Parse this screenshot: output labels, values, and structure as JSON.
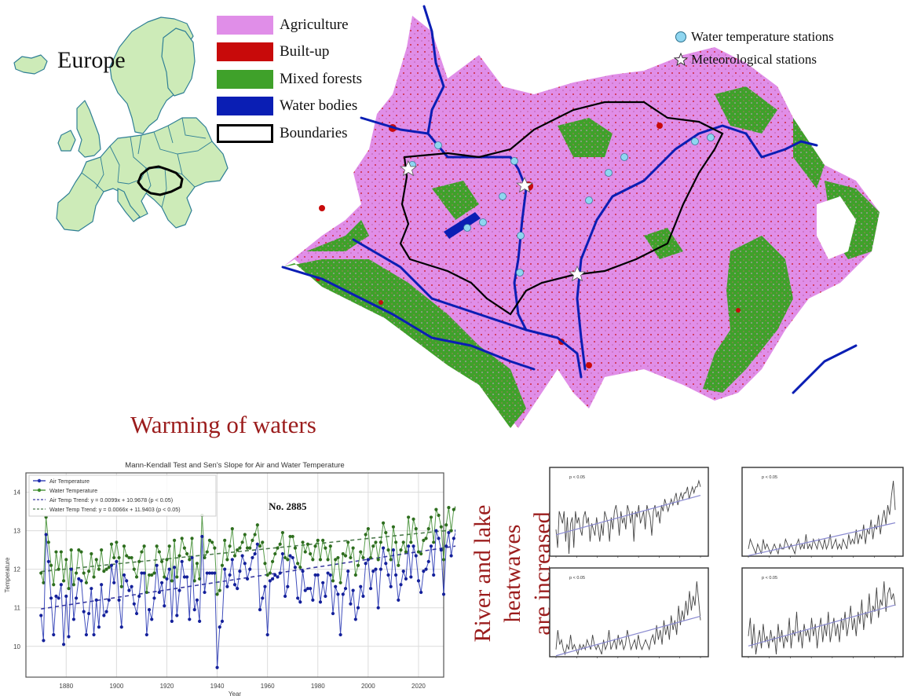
{
  "europe_inset": {
    "title": "Europe",
    "land_color": "#cdebb8",
    "border_color": "#2f7f95",
    "highlight_outline_color": "#000000"
  },
  "landcover_legend": {
    "items": [
      {
        "label": "Agriculture",
        "color": "#e08ee8",
        "kind": "fill"
      },
      {
        "label": "Built-up",
        "color": "#c80a0a",
        "kind": "fill"
      },
      {
        "label": "Mixed forests",
        "color": "#3fa12a",
        "kind": "fill"
      },
      {
        "label": "Water bodies",
        "color": "#0a1eb4",
        "kind": "fill"
      },
      {
        "label": "Boundaries",
        "color": "#000000",
        "kind": "outline"
      }
    ]
  },
  "station_legend": {
    "items": [
      {
        "label": "Water temperature stations",
        "symbol": "circle-icon",
        "color": "#8fd6f0"
      },
      {
        "label": "Meteorological stations",
        "symbol": "star-icon",
        "color": "#ffffff"
      }
    ]
  },
  "section_titles": {
    "warming": "Warming of waters",
    "heatwaves_line1": "River and lake heatwaves",
    "heatwaves_line2": "are increased"
  },
  "chart_data": [
    {
      "type": "line",
      "title": "Mann-Kendall Test and Sen's Slope for Air and Water Temperature",
      "xlabel": "Year",
      "ylabel": "Temperature",
      "annotation": "No. 2885",
      "xlim": [
        1864,
        2030
      ],
      "ylim": [
        9.2,
        14.5
      ],
      "xticks": [
        1880,
        1900,
        1920,
        1940,
        1960,
        1980,
        2000,
        2020
      ],
      "yticks": [
        10,
        11,
        12,
        13,
        14
      ],
      "grid": true,
      "legend_position": "upper left",
      "legend": [
        "Air Temperature",
        "Water Temperature",
        "Air Temp Trend: y = 0.0099x + 10.9678 (p < 0.05)",
        "Water Temp Trend: y = 0.0066x + 11.9403 (p < 0.05)"
      ],
      "x_start": 1870,
      "series": [
        {
          "name": "Air Temperature",
          "color": "#1f2fb0",
          "values": [
            10.8,
            10.15,
            12.9,
            12.2,
            11.25,
            10.3,
            11.3,
            11.25,
            11.6,
            10.05,
            11.3,
            10.25,
            12.0,
            10.7,
            11.25,
            11.75,
            11.7,
            10.9,
            10.3,
            10.85,
            11.5,
            10.3,
            11.2,
            10.5,
            11.6,
            10.8,
            10.9,
            11.2,
            12.1,
            11.65,
            12.2,
            11.2,
            10.5,
            11.85,
            11.7,
            11.45,
            11.55,
            11.1,
            10.85,
            11.3,
            11.9,
            11.9,
            10.3,
            10.95,
            10.7,
            11.25,
            12.1,
            11.4,
            11.65,
            11.05,
            11.75,
            12.0,
            10.65,
            12.05,
            10.8,
            11.45,
            12.2,
            11.8,
            11.8,
            10.7,
            12.3,
            10.95,
            11.2,
            10.65,
            12.85,
            11.4,
            11.9,
            11.9,
            11.9,
            11.9,
            9.45,
            10.5,
            10.65,
            12.0,
            11.55,
            11.85,
            12.25,
            11.6,
            11.5,
            11.95,
            12.35,
            12.15,
            11.75,
            12.0,
            12.3,
            12.4,
            12.65,
            10.95,
            11.25,
            11.55,
            10.3,
            11.7,
            11.75,
            11.85,
            11.8,
            11.9,
            12.4,
            11.3,
            11.55,
            12.35,
            12.3,
            12.05,
            11.25,
            11.15,
            11.95,
            11.45,
            11.5,
            11.5,
            11.2,
            11.85,
            11.85,
            11.15,
            11.65,
            11.3,
            11.9,
            11.85,
            10.85,
            11.55,
            11.35,
            10.3,
            11.35,
            11.5,
            11.95,
            11.1,
            11.45,
            10.7,
            11.0,
            11.55,
            11.3,
            12.15,
            12.25,
            11.5,
            11.95,
            12.0,
            11.0,
            12.0,
            12.55,
            12.15,
            11.85,
            11.55,
            12.5,
            11.85,
            11.2,
            11.6,
            11.95,
            11.75,
            12.6,
            11.8,
            12.6,
            12.35,
            11.7,
            11.4,
            11.95,
            12.0,
            12.2,
            12.6,
            11.85,
            13.0,
            12.8,
            12.5,
            11.35,
            12.6,
            12.95,
            12.35,
            12.8,
            13.0,
            12.65,
            12.6,
            13.4,
            14.0,
            13.25,
            12.3
          ]
        },
        {
          "name": "Water Temperature",
          "color": "#3a8a2a",
          "values": [
            11.9,
            11.65,
            13.35,
            12.7,
            12.1,
            11.6,
            12.45,
            12.0,
            12.45,
            11.7,
            12.25,
            11.5,
            12.5,
            11.6,
            11.9,
            12.5,
            12.45,
            11.9,
            11.65,
            11.95,
            12.4,
            11.8,
            12.25,
            12.0,
            12.5,
            11.95,
            12.0,
            12.05,
            12.65,
            12.3,
            12.7,
            12.3,
            11.55,
            12.6,
            12.35,
            12.3,
            12.3,
            12.0,
            11.8,
            12.2,
            12.45,
            12.6,
            11.4,
            11.85,
            11.85,
            11.9,
            12.6,
            12.45,
            12.2,
            11.8,
            12.25,
            12.6,
            11.7,
            12.75,
            11.8,
            12.35,
            12.8,
            12.55,
            12.4,
            12.25,
            12.8,
            11.7,
            12.15,
            11.75,
            13.4,
            12.3,
            12.45,
            12.75,
            12.7,
            12.55,
            11.35,
            11.45,
            12.1,
            12.75,
            12.25,
            12.6,
            13.05,
            12.35,
            12.5,
            12.55,
            12.7,
            12.9,
            12.55,
            12.55,
            12.75,
            12.9,
            13.15,
            12.6,
            12.7,
            12.15,
            11.85,
            11.9,
            12.2,
            12.4,
            12.55,
            12.65,
            12.95,
            12.3,
            12.25,
            12.85,
            12.85,
            12.55,
            12.15,
            12.05,
            12.7,
            12.45,
            12.65,
            12.4,
            12.25,
            12.6,
            12.75,
            12.25,
            12.75,
            12.55,
            12.25,
            12.6,
            11.7,
            12.25,
            12.3,
            11.65,
            12.4,
            12.35,
            12.7,
            12.3,
            12.55,
            11.85,
            12.1,
            12.45,
            12.3,
            12.9,
            13.05,
            12.3,
            12.6,
            12.7,
            12.25,
            12.7,
            13.2,
            12.95,
            12.5,
            12.25,
            13.1,
            12.7,
            12.1,
            12.5,
            12.7,
            12.45,
            13.35,
            12.7,
            13.3,
            13.05,
            12.45,
            12.4,
            12.75,
            12.8,
            13.05,
            13.35,
            12.7,
            13.55,
            13.4,
            13.1,
            12.25,
            13.15,
            13.6,
            13.0,
            13.55,
            13.6,
            13.35,
            13.0,
            13.95,
            14.2,
            13.8,
            12.8
          ]
        }
      ],
      "trends": [
        {
          "name": "Air Temp Trend",
          "slope": 0.0099,
          "start": 10.97,
          "color": "#3a3aa0"
        },
        {
          "name": "Water Temp Trend",
          "slope": 0.0066,
          "start": 11.94,
          "color": "#4d7a4d"
        }
      ]
    },
    {
      "type": "line",
      "panel": "top-left",
      "annotation": "p < 0.05",
      "trend": "increasing",
      "values": [
        5,
        2,
        8,
        7,
        6,
        8,
        3,
        7,
        1,
        6,
        7,
        2,
        8,
        6,
        7,
        5,
        4,
        7,
        8,
        6,
        7,
        3,
        6,
        5,
        4,
        7,
        5,
        3,
        6,
        4,
        8,
        7,
        6,
        3,
        7,
        5,
        8,
        9,
        7,
        4,
        8,
        6,
        7,
        5,
        9,
        8,
        6,
        8,
        3,
        8,
        7,
        9,
        6,
        7,
        8,
        5,
        9,
        8,
        7,
        4,
        8,
        9,
        7,
        8,
        6,
        9,
        8,
        10,
        9,
        8,
        9,
        10,
        9,
        10,
        11,
        9,
        10,
        11,
        10,
        11,
        11,
        12,
        10,
        11,
        12,
        11,
        12,
        12,
        13,
        12
      ]
    },
    {
      "type": "line",
      "panel": "top-right",
      "annotation": "p < 0.05",
      "trend": "increasing",
      "values": [
        1,
        3,
        2,
        1,
        0,
        2,
        1,
        0,
        3,
        1,
        2,
        1,
        0,
        1,
        2,
        1,
        0,
        2,
        1,
        1,
        3,
        2,
        1,
        2,
        1,
        0,
        2,
        3,
        1,
        2,
        1,
        4,
        1,
        2,
        1,
        3,
        2,
        1,
        3,
        2,
        1,
        3,
        1,
        2,
        4,
        1,
        2,
        3,
        1,
        2,
        1,
        3,
        2,
        1,
        4,
        2,
        3,
        2,
        5,
        2,
        4,
        3,
        6,
        2,
        5,
        4,
        7,
        3,
        6,
        5,
        8,
        4,
        7,
        9,
        6,
        10,
        8,
        12,
        15,
        9
      ]
    },
    {
      "type": "line",
      "panel": "bottom-left",
      "annotation": "p < 0.05",
      "trend": "increasing",
      "values": [
        1,
        5,
        2,
        3,
        1,
        0,
        2,
        1,
        4,
        1,
        2,
        1,
        0,
        2,
        1,
        2,
        1,
        3,
        2,
        1,
        4,
        2,
        1,
        2,
        1,
        0,
        3,
        1,
        2,
        5,
        1,
        2,
        3,
        1,
        4,
        2,
        3,
        1,
        2,
        5,
        3,
        1,
        2,
        3,
        1,
        4,
        2,
        1,
        2,
        3,
        2,
        1,
        3,
        4,
        2,
        6,
        3,
        5,
        2,
        7,
        4,
        6,
        3,
        8,
        5,
        7,
        4,
        10,
        6,
        9,
        7,
        11,
        8,
        13,
        9,
        12,
        10,
        15,
        11,
        7
      ]
    },
    {
      "type": "line",
      "panel": "bottom-right",
      "annotation": "p < 0.05",
      "trend": "increasing",
      "values": [
        4,
        7,
        2,
        6,
        1,
        3,
        5,
        2,
        6,
        3,
        4,
        2,
        5,
        3,
        4,
        1,
        6,
        3,
        5,
        2,
        4,
        3,
        7,
        2,
        5,
        4,
        8,
        3,
        5,
        2,
        6,
        4,
        5,
        3,
        7,
        4,
        6,
        2,
        5,
        7,
        3,
        6,
        4,
        8,
        3,
        5,
        7,
        4,
        6,
        3,
        7,
        5,
        8,
        4,
        6,
        9,
        5,
        7,
        4,
        8,
        6,
        10,
        5,
        8,
        7,
        11,
        6,
        9,
        8,
        12,
        7,
        10,
        9,
        13,
        8,
        11,
        12,
        10,
        11,
        9
      ]
    }
  ]
}
